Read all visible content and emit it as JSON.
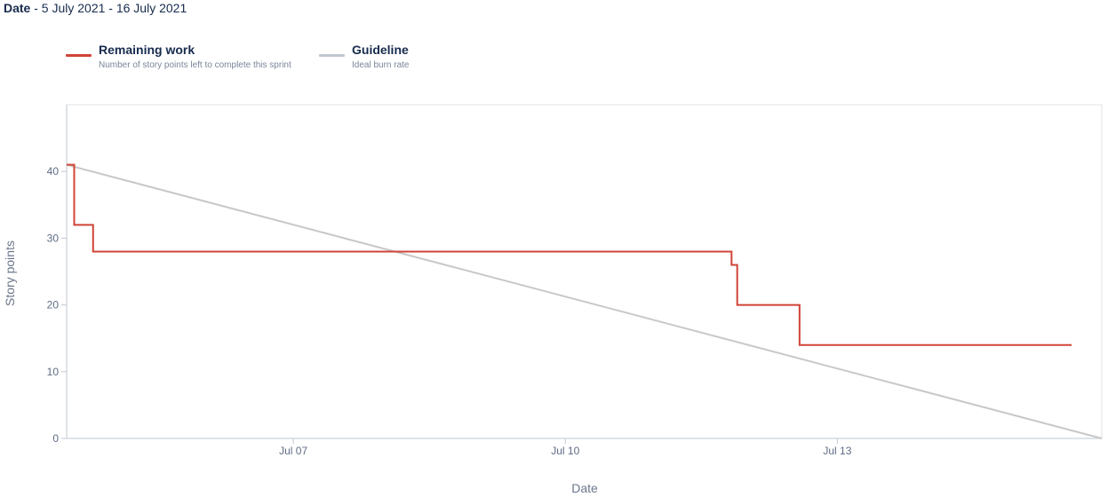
{
  "header": {
    "label": "Date",
    "range_text": " - 5 July 2021 - 16 July 2021"
  },
  "legend": [
    {
      "title": "Remaining work",
      "description": "Number of story points left to complete this sprint",
      "color": "#d04437"
    },
    {
      "title": "Guideline",
      "description": "Ideal burn rate",
      "color": "#c1c7d0"
    }
  ],
  "chart_data": {
    "type": "line",
    "xlabel": "Date",
    "ylabel": "Story points",
    "x_range": [
      "2021-07-04T12:00",
      "2021-07-15T22:00"
    ],
    "ylim": [
      0,
      50
    ],
    "y_ticks": [
      0,
      10,
      20,
      30,
      40
    ],
    "x_ticks": [
      {
        "label": "Jul 07",
        "date": "2021-07-07T00:00"
      },
      {
        "label": "Jul 10",
        "date": "2021-07-10T00:00"
      },
      {
        "label": "Jul 13",
        "date": "2021-07-13T00:00"
      }
    ],
    "grid": false,
    "legend_position": "top-left",
    "series": [
      {
        "name": "Remaining work",
        "color": "#d04437",
        "step": true,
        "points": [
          {
            "x": "2021-07-04T12:00",
            "y": 41
          },
          {
            "x": "2021-07-04T14:00",
            "y": 32
          },
          {
            "x": "2021-07-04T19:00",
            "y": 28
          },
          {
            "x": "2021-07-11T20:00",
            "y": 26
          },
          {
            "x": "2021-07-11T21:30",
            "y": 20
          },
          {
            "x": "2021-07-12T14:00",
            "y": 14
          },
          {
            "x": "2021-07-15T14:00",
            "y": 14
          }
        ]
      },
      {
        "name": "Guideline",
        "color": "#c1c7d0",
        "step": false,
        "points": [
          {
            "x": "2021-07-04T12:00",
            "y": 41
          },
          {
            "x": "2021-07-15T22:00",
            "y": 0
          }
        ]
      }
    ]
  }
}
